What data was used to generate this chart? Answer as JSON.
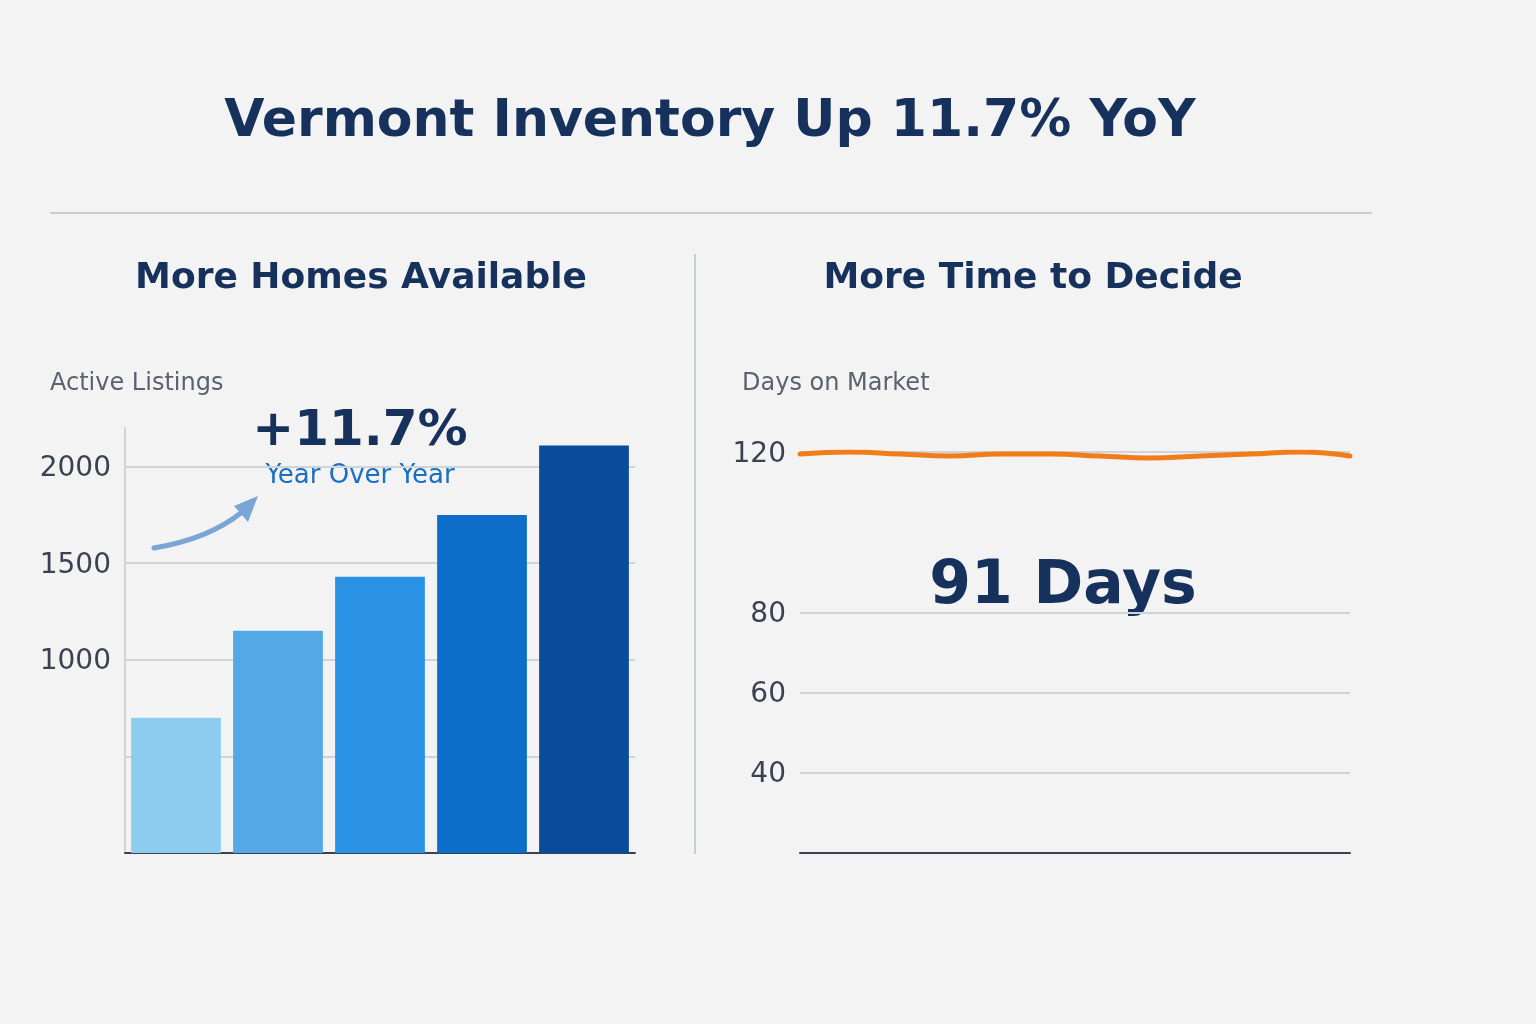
{
  "chart_data": [
    {
      "type": "bar",
      "title": "More Homes Available",
      "ylabel": "Active Listings",
      "annotations": [
        "Vermont Inventory Up 11.7% YoY",
        "+11.7%",
        "Year Over Year"
      ],
      "categories": [
        null,
        null,
        null,
        null,
        null
      ],
      "values": [
        700,
        1150,
        1430,
        1750,
        2110
      ],
      "colors": [
        "#8ecdf0",
        "#55a8e6",
        "#2a92e4",
        "#0d6ec9",
        "#0a4c9c"
      ],
      "ylim": [
        0,
        2200
      ],
      "yticks": [
        {
          "value": 500,
          "label": null
        },
        1000,
        1500,
        2000
      ],
      "grid": "y"
    },
    {
      "type": "line",
      "title": "More Time to Decide",
      "ylabel": "Days on Market",
      "annotations": [
        "91 Days"
      ],
      "categories": [
        null,
        null,
        null,
        null,
        null,
        null,
        null,
        null,
        null,
        null,
        null,
        null
      ],
      "series": [
        {
          "color": "#f07d18",
          "values": [
            119.5,
            120,
            119.5,
            119,
            119.5,
            119.5,
            119,
            118.5,
            119,
            119.5,
            120,
            119
          ]
        }
      ],
      "ylim": [
        20,
        120
      ],
      "yticks": [
        40,
        60,
        80,
        120
      ],
      "grid": "y",
      "marker": "none",
      "line_style": "solid"
    }
  ]
}
